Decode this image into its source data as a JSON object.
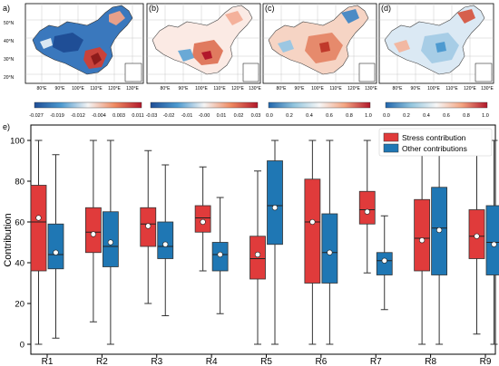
{
  "maps": {
    "panels": [
      {
        "label": "a)",
        "colorbar_ticks": [
          "-0.027",
          "-0.019",
          "-0.012",
          "-0.004",
          "0.003",
          "0.011"
        ]
      },
      {
        "label": "(b)",
        "colorbar_ticks": [
          "-0.03",
          "-0.02",
          "-0.01",
          "-0.00",
          "0.01",
          "0.02",
          "0.03"
        ]
      },
      {
        "label": "(c)",
        "colorbar_ticks": [
          "0.0",
          "0.2",
          "0.4",
          "0.6",
          "0.8",
          "1.0"
        ]
      },
      {
        "label": "(d)",
        "colorbar_ticks": [
          "0.0",
          "0.2",
          "0.4",
          "0.6",
          "0.8",
          "1.0"
        ]
      }
    ],
    "lon_ticks": [
      "80°E",
      "90°E",
      "100°E",
      "110°E",
      "120°E",
      "130°E"
    ],
    "lat_ticks": [
      "50°N",
      "40°N",
      "30°N",
      "20°N"
    ],
    "colors": {
      "low": "#1f5fa8",
      "mid": "#f4f4f4",
      "high": "#b2182b"
    }
  },
  "chart_data": {
    "type": "box",
    "panel_label": "e)",
    "ylabel": "Contribution",
    "ylim": [
      0,
      100
    ],
    "yticks": [
      "0",
      "20",
      "40",
      "60",
      "80",
      "100"
    ],
    "categories": [
      "R1",
      "R2",
      "R3",
      "R4",
      "R5",
      "R6",
      "R7",
      "R8",
      "R9"
    ],
    "series": [
      {
        "name": "Stress contribution",
        "color": "#e03b3b",
        "boxes": [
          {
            "min": 0,
            "q1": 36,
            "median": 60,
            "q3": 78,
            "max": 100,
            "mean": 62
          },
          {
            "min": 11,
            "q1": 45,
            "median": 55,
            "q3": 67,
            "max": 100,
            "mean": 54
          },
          {
            "min": 20,
            "q1": 48,
            "median": 59,
            "q3": 67,
            "max": 95,
            "mean": 58
          },
          {
            "min": 36,
            "q1": 55,
            "median": 62,
            "q3": 68,
            "max": 87,
            "mean": 60
          },
          {
            "min": 0,
            "q1": 32,
            "median": 42,
            "q3": 53,
            "max": 85,
            "mean": 44
          },
          {
            "min": 0,
            "q1": 30,
            "median": 60,
            "q3": 81,
            "max": 100,
            "mean": 60
          },
          {
            "min": 35,
            "q1": 59,
            "median": 66,
            "q3": 75,
            "max": 100,
            "mean": 65
          },
          {
            "min": 0,
            "q1": 36,
            "median": 52,
            "q3": 71,
            "max": 100,
            "mean": 51
          },
          {
            "min": 5,
            "q1": 42,
            "median": 53,
            "q3": 66,
            "max": 95,
            "mean": 53
          }
        ]
      },
      {
        "name": "Other contributions",
        "color": "#1f77b4",
        "boxes": [
          {
            "min": 3,
            "q1": 37,
            "median": 44,
            "q3": 59,
            "max": 93,
            "mean": 45
          },
          {
            "min": 0,
            "q1": 38,
            "median": 48,
            "q3": 65,
            "max": 100,
            "mean": 50
          },
          {
            "min": 14,
            "q1": 42,
            "median": 48,
            "q3": 60,
            "max": 88,
            "mean": 49
          },
          {
            "min": 15,
            "q1": 36,
            "median": 44,
            "q3": 50,
            "max": 72,
            "mean": 44
          },
          {
            "min": 0,
            "q1": 49,
            "median": 68,
            "q3": 90,
            "max": 100,
            "mean": 67
          },
          {
            "min": 0,
            "q1": 30,
            "median": 45,
            "q3": 64,
            "max": 100,
            "mean": 45
          },
          {
            "min": 17,
            "q1": 34,
            "median": 41,
            "q3": 45,
            "max": 63,
            "mean": 41
          },
          {
            "min": 0,
            "q1": 34,
            "median": 57,
            "q3": 77,
            "max": 100,
            "mean": 56
          },
          {
            "min": 0,
            "q1": 34,
            "median": 50,
            "q3": 68,
            "max": 100,
            "mean": 49
          }
        ]
      }
    ],
    "legend": {
      "position": "top-right"
    }
  }
}
